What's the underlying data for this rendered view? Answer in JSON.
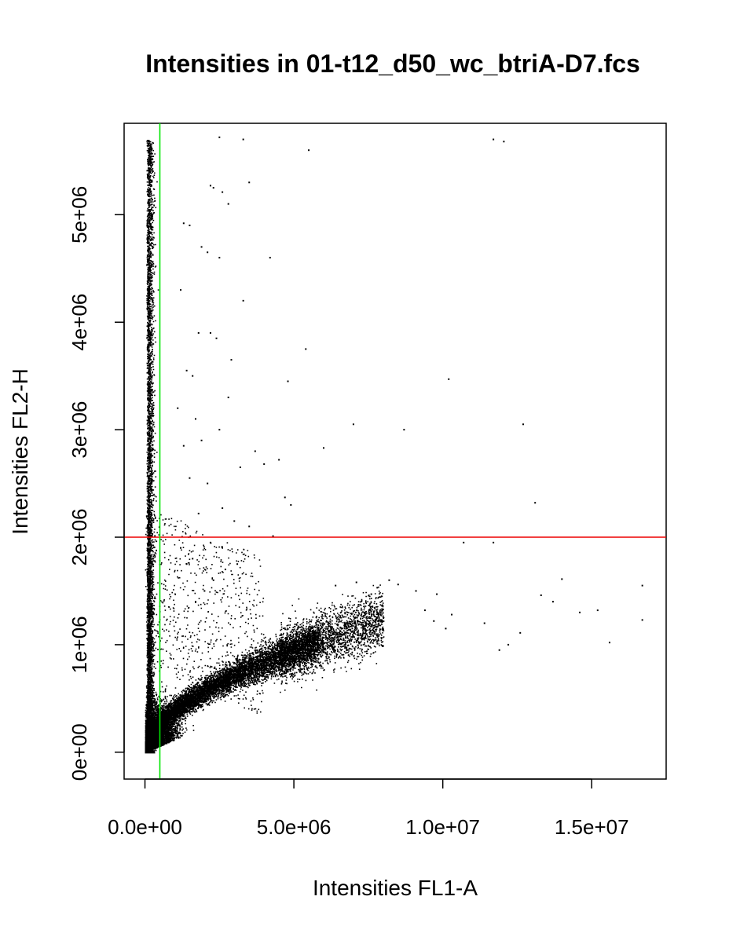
{
  "chart_data": {
    "type": "scatter",
    "title": "Intensities in 01-t12_d50_wc_btriA-D7.fcs",
    "xlabel": "Intensities FL1-A",
    "ylabel": "Intensities FL2-H",
    "xlim": [
      -700000,
      17500000
    ],
    "ylim": [
      -250000,
      5850000
    ],
    "xticks": [
      {
        "value": 0,
        "label": "0.0e+00"
      },
      {
        "value": 5000000,
        "label": "5.0e+06"
      },
      {
        "value": 10000000,
        "label": "1.0e+07"
      },
      {
        "value": 15000000,
        "label": "1.5e+07"
      }
    ],
    "yticks": [
      {
        "value": 0,
        "label": "0e+00"
      },
      {
        "value": 1000000,
        "label": "1e+06"
      },
      {
        "value": 2000000,
        "label": "2e+06"
      },
      {
        "value": 3000000,
        "label": "3e+06"
      },
      {
        "value": 4000000,
        "label": "4e+06"
      },
      {
        "value": 5000000,
        "label": "5e+06"
      }
    ],
    "vertical_threshold": {
      "value": 500000,
      "color": "#00e600"
    },
    "horizontal_threshold": {
      "value": 2000000,
      "color": "#ee0000"
    },
    "point_color": "#000000",
    "grid": false,
    "legend": "none",
    "series": [
      {
        "name": "",
        "x": [
          11700000,
          12050000,
          5500000,
          3300000,
          2500000,
          2300000,
          3500000,
          2200000,
          2600000,
          2800000,
          1300000,
          1500000,
          1900000,
          2100000,
          2500000,
          4200000,
          3300000,
          1200000,
          2900000,
          2400000,
          1800000,
          2200000,
          1400000,
          1600000,
          5400000,
          2800000,
          1100000,
          4800000,
          10200000,
          1700000,
          2500000,
          1300000,
          1900000,
          7000000,
          8700000,
          12700000,
          3700000,
          6000000,
          4500000,
          4000000,
          3200000,
          1500000,
          2100000,
          4700000,
          4900000,
          13100000,
          2600000,
          1800000,
          3000000,
          3500000,
          4300000,
          1200000,
          2200000,
          1600000,
          10700000,
          11700000,
          13300000,
          14000000,
          14600000,
          16700000,
          15200000,
          16700000,
          15600000,
          12200000,
          12600000,
          13700000,
          11400000,
          11900000,
          9800000,
          9100000,
          8500000,
          7600000,
          7800000,
          8200000,
          7100000,
          6400000,
          9400000,
          10300000,
          9700000,
          10100000,
          1700000,
          2000000,
          2700000,
          3100000,
          1400000,
          2300000
        ],
        "y": [
          5700000,
          5680000,
          5600000,
          5700000,
          5720000,
          5250000,
          5300000,
          5270000,
          5210000,
          5100000,
          4920000,
          4900000,
          4700000,
          4650000,
          4600000,
          4600000,
          4200000,
          4300000,
          3650000,
          3850000,
          3900000,
          3900000,
          3550000,
          3500000,
          3750000,
          3300000,
          3200000,
          3450000,
          3470000,
          3100000,
          3000000,
          2850000,
          2900000,
          3050000,
          3000000,
          3050000,
          2800000,
          2830000,
          2720000,
          2680000,
          2650000,
          2550000,
          2500000,
          2370000,
          2300000,
          2320000,
          2270000,
          2220000,
          2150000,
          2100000,
          2010000,
          1900000,
          1950000,
          1800000,
          1950000,
          1950000,
          1460000,
          1610000,
          1300000,
          1550000,
          1320000,
          1230000,
          1020000,
          1000000,
          1110000,
          1400000,
          1200000,
          950000,
          1470000,
          1500000,
          1560000,
          1470000,
          1530000,
          1600000,
          1580000,
          1550000,
          1320000,
          1280000,
          1220000,
          1150000,
          1400000,
          1500000,
          1700000,
          1750000,
          1750000,
          1600000
        ]
      }
    ]
  }
}
